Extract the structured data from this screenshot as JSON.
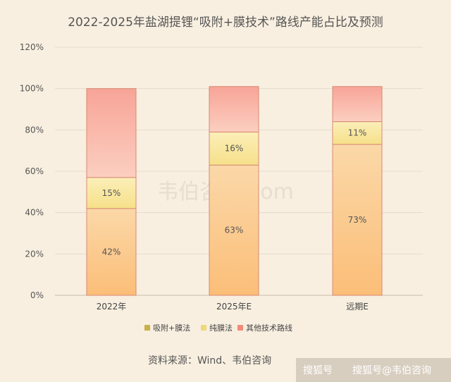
{
  "chart_data": {
    "type": "bar",
    "stacked": true,
    "title": "2022-2025年盐湖提锂“吸附+膜技术”路线产能占比及预测",
    "categories": [
      "2022年",
      "2025年E",
      "远期E"
    ],
    "series": [
      {
        "name": "吸附+膜法",
        "values": [
          42,
          63,
          73
        ],
        "color": "#f9c78c"
      },
      {
        "name": "纯膜法",
        "values": [
          15,
          16,
          11
        ],
        "color": "#f8e8a0"
      },
      {
        "name": "其他技术路线",
        "values": [
          43,
          22,
          17
        ],
        "color": "#f7aca0"
      }
    ],
    "ylim": [
      0,
      120
    ],
    "yticks": [
      "0%",
      "20%",
      "40%",
      "60%",
      "80%",
      "100%",
      "120%"
    ],
    "grid": true,
    "legend_position": "bottom",
    "legend_colors": [
      "#c8b04a",
      "#ecd97a",
      "#f08c78"
    ]
  },
  "footer": {
    "source": "资料来源：Wind、韦伯咨询"
  },
  "watermark": "韦伯咨询.com",
  "corner_watermark": {
    "left": "搜狐号",
    "right": "搜狐号@韦伯咨询"
  }
}
